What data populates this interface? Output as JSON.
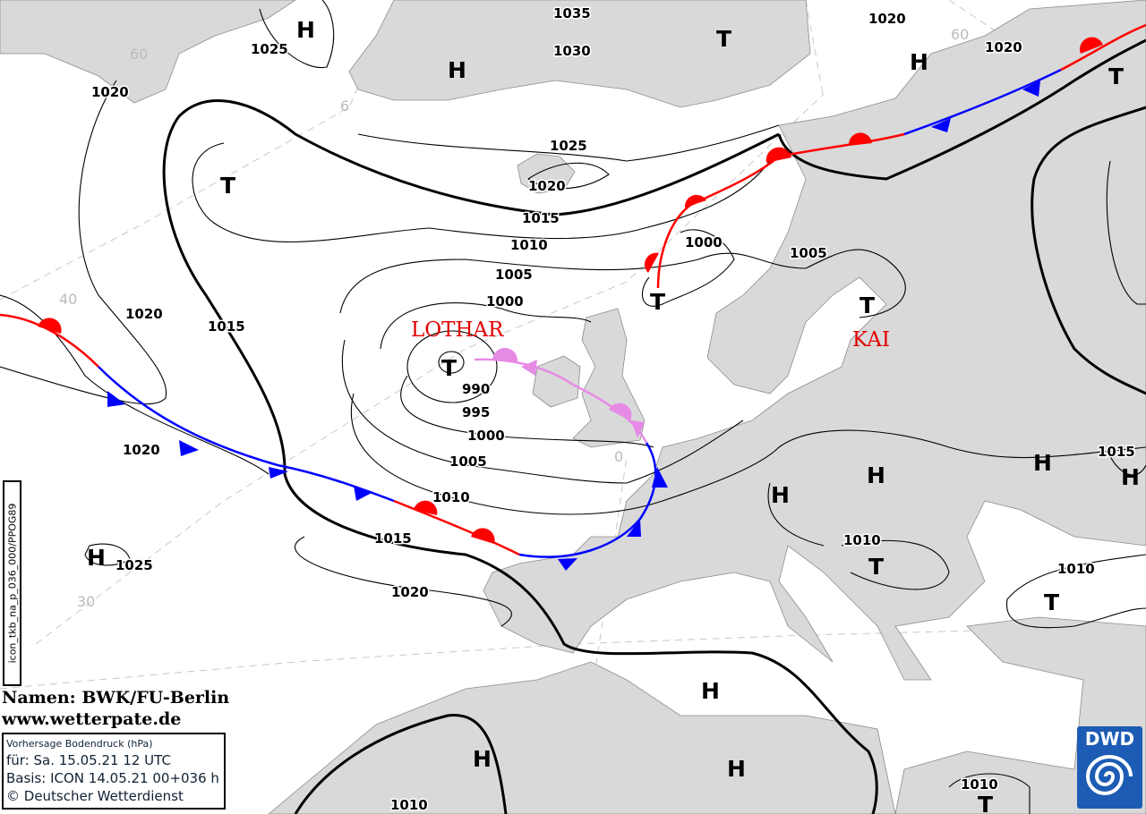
{
  "map": {
    "title": "Vorhersage Bodendruck (hPa)",
    "valid": "für:  Sa. 15.05.21  12 UTC",
    "basis": "Basis: ICON  14.05.21 00+036 h",
    "copyright": "© Deutscher Wetterdienst",
    "product_code": "icon_tkb_na_p_036_000/PPOG89",
    "names_credit": "Namen: BWK/FU-Berlin",
    "website": "www.wetterpate.de",
    "logo_text": "DWD",
    "colors": {
      "land": "#d9d9d9",
      "warm_front": "#ff0000",
      "cold_front": "#0000ff",
      "occlusion": "#e68ae6",
      "names": "#e00000",
      "logo": "#1d5cb4"
    }
  },
  "pressure_systems": [
    {
      "type": "H"
    },
    {
      "type": "H"
    },
    {
      "type": "T"
    },
    {
      "type": "H"
    },
    {
      "type": "T"
    },
    {
      "type": "T"
    },
    {
      "type": "T"
    },
    {
      "type": "T"
    },
    {
      "type": "H"
    },
    {
      "type": "H"
    },
    {
      "type": "H"
    },
    {
      "type": "H"
    },
    {
      "type": "T"
    },
    {
      "type": "T"
    },
    {
      "type": "H"
    },
    {
      "type": "H"
    },
    {
      "type": "H"
    },
    {
      "type": "T"
    },
    {
      "type": "H"
    },
    {
      "type": "T"
    },
    {
      "type": "H"
    }
  ],
  "named_systems": [
    "LOTHAR",
    "KAI"
  ],
  "isobar_labels": [
    "1025",
    "1020",
    "1035",
    "1030",
    "1020",
    "1020",
    "1025",
    "1020",
    "1015",
    "1010",
    "1005",
    "1000",
    "1000",
    "1005",
    "1020",
    "1015",
    "990",
    "995",
    "1000",
    "1005",
    "1020",
    "1010",
    "1015",
    "1020",
    "1025",
    "1010",
    "1010",
    "1015",
    "1010",
    "1010"
  ],
  "grid_labels": [
    "60",
    "6",
    "40",
    "30",
    "0",
    "60"
  ]
}
